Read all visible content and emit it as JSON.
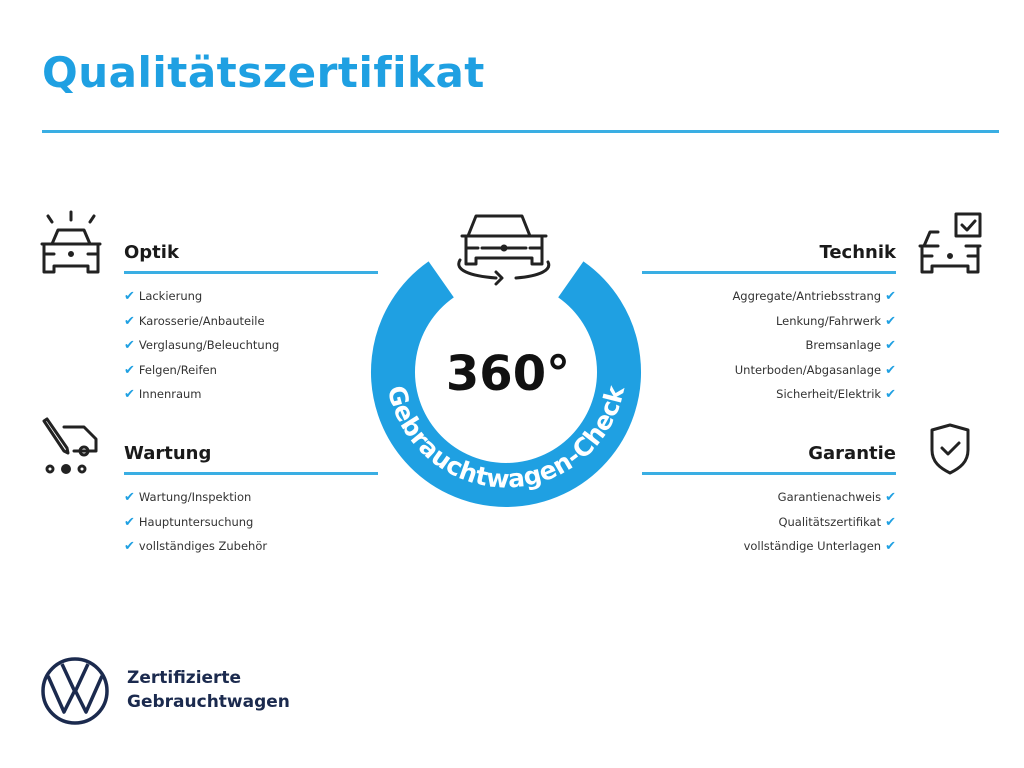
{
  "title": "Qualitätszertifikat",
  "colors": {
    "accent": "#1fa0e2",
    "brand_navy": "#1b2a4e"
  },
  "center": {
    "value": "360°",
    "ring_text": "Gebrauchtwagen-Check",
    "icon": "car-rotate-icon"
  },
  "sections": {
    "optik": {
      "heading": "Optik",
      "icon": "car-lights-icon",
      "items": [
        "Lackierung",
        "Karosserie/Anbauteile",
        "Verglasung/Beleuchtung",
        "Felgen/Reifen",
        "Innenraum"
      ]
    },
    "wartung": {
      "heading": "Wartung",
      "icon": "service-tools-icon",
      "items": [
        "Wartung/Inspektion",
        "Hauptuntersuchung",
        "vollständiges Zubehör"
      ]
    },
    "technik": {
      "heading": "Technik",
      "icon": "car-checklist-icon",
      "items": [
        "Aggregate/Antriebsstrang",
        "Lenkung/Fahrwerk",
        "Bremsanlage",
        "Unterboden/Abgasanlage",
        "Sicherheit/Elektrik"
      ]
    },
    "garantie": {
      "heading": "Garantie",
      "icon": "shield-check-icon",
      "items": [
        "Garantienachweis",
        "Qualitätszertifikat",
        "vollständige Unterlagen"
      ]
    }
  },
  "check_glyph": "✔",
  "footer": {
    "logo": "VW",
    "line1": "Zertifizierte",
    "line2": "Gebrauchtwagen"
  }
}
